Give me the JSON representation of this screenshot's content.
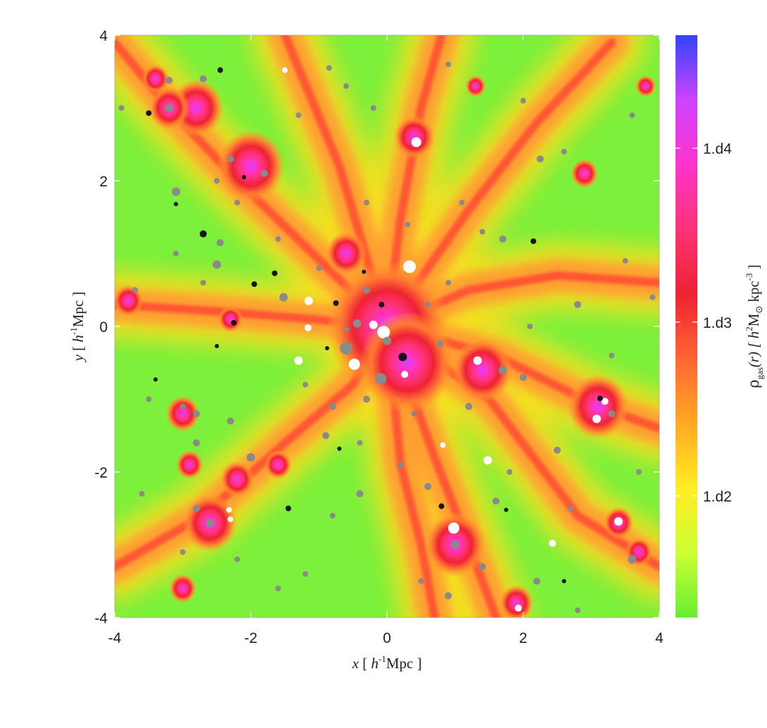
{
  "chart_data": {
    "type": "heatmap",
    "title": "",
    "xlabel_var": "x",
    "xlabel_unit_open": " [ ",
    "xlabel_h": "h",
    "xlabel_exp": "-1",
    "xlabel_unit_close": "Mpc ]",
    "ylabel_var": "y",
    "ylabel_unit_open": " [ ",
    "ylabel_h": "h",
    "ylabel_exp": "-1",
    "ylabel_unit_close": "Mpc ]",
    "xlim": [
      -4,
      4
    ],
    "ylim": [
      -4,
      4
    ],
    "x_ticks": [
      -4,
      -2,
      0,
      2,
      4
    ],
    "y_ticks": [
      -4,
      -2,
      0,
      2,
      4
    ],
    "x_tick_labels": [
      "-4",
      "-2",
      "0",
      "2",
      "4"
    ],
    "y_tick_labels": [
      "-4",
      "-2",
      "0",
      "2",
      "4"
    ],
    "colorbar": {
      "label_rho": "ρ",
      "label_sub": "gas",
      "label_arg": "(r) [ ",
      "label_h": "h",
      "label_h_exp": "2",
      "label_msun": "M",
      "label_sun": "⊙",
      "label_kpc": " kpc",
      "label_kpc_exp": "-3",
      "label_close": " ]",
      "tick_labels": [
        "1.d2",
        "1.d3",
        "1.d4"
      ],
      "tick_values_log10": [
        2,
        3,
        4
      ],
      "range_log10": [
        1.3,
        4.65
      ],
      "colors": [
        "#66ee33",
        "#ccff33",
        "#ffee22",
        "#ffaa22",
        "#ff6633",
        "#ee2233",
        "#ff3377",
        "#ff33cc",
        "#cc44ff",
        "#3344ff"
      ]
    },
    "background_color": "#7cf03c",
    "filaments": [
      {
        "x": [
          0,
          -1.2,
          -2.3,
          -3.2,
          -4.0
        ],
        "y": [
          0,
          1.1,
          2.1,
          3.0,
          3.9
        ]
      },
      {
        "x": [
          0,
          0.2,
          0.5,
          0.8
        ],
        "y": [
          0,
          1.5,
          3.0,
          4.0
        ]
      },
      {
        "x": [
          0,
          -0.7,
          -1.5
        ],
        "y": [
          0,
          2.2,
          4.0
        ]
      },
      {
        "x": [
          0,
          1.2,
          2.2,
          3.3
        ],
        "y": [
          0,
          1.6,
          2.8,
          3.9
        ]
      },
      {
        "x": [
          0,
          1.6,
          3.1,
          4.0
        ],
        "y": [
          0,
          -0.4,
          -1.1,
          -1.4
        ]
      },
      {
        "x": [
          0,
          0.7,
          1.2,
          1.6
        ],
        "y": [
          0,
          -1.8,
          -3.0,
          -4.0
        ]
      },
      {
        "x": [
          0,
          0.2,
          0.5,
          0.7
        ],
        "y": [
          0,
          -1.9,
          -3.0,
          -4.0
        ]
      },
      {
        "x": [
          0,
          -0.5,
          -1.5,
          -2.7,
          -4.0
        ],
        "y": [
          0,
          -0.8,
          -1.6,
          -2.6,
          -3.3
        ]
      },
      {
        "x": [
          0,
          -1.1,
          -2.4,
          -4.0
        ],
        "y": [
          0,
          0.1,
          0.2,
          0.3
        ]
      },
      {
        "x": [
          0,
          1.2,
          2.5,
          4.0
        ],
        "y": [
          0,
          0.5,
          0.7,
          0.6
        ]
      },
      {
        "x": [
          0,
          1.5,
          2.8,
          4.0
        ],
        "y": [
          0,
          -1.0,
          -2.6,
          -3.3
        ]
      }
    ],
    "halos": [
      {
        "x": 0.0,
        "y": 0.0,
        "r": 0.9
      },
      {
        "x": 0.3,
        "y": -0.5,
        "r": 0.7
      },
      {
        "x": 1.4,
        "y": -0.6,
        "r": 0.45
      },
      {
        "x": 3.1,
        "y": -1.1,
        "r": 0.45
      },
      {
        "x": 1.0,
        "y": -3.0,
        "r": 0.45
      },
      {
        "x": -2.8,
        "y": 3.0,
        "r": 0.4
      },
      {
        "x": -2.0,
        "y": 2.2,
        "r": 0.5
      },
      {
        "x": -3.2,
        "y": 3.0,
        "r": 0.3
      },
      {
        "x": -2.6,
        "y": -2.7,
        "r": 0.4
      },
      {
        "x": -3.0,
        "y": -1.2,
        "r": 0.25
      },
      {
        "x": -2.9,
        "y": -1.9,
        "r": 0.2
      },
      {
        "x": -3.0,
        "y": -3.6,
        "r": 0.2
      },
      {
        "x": 0.4,
        "y": 2.6,
        "r": 0.3
      },
      {
        "x": -3.8,
        "y": 0.35,
        "r": 0.22
      },
      {
        "x": 3.4,
        "y": -2.7,
        "r": 0.22
      },
      {
        "x": 3.7,
        "y": -3.1,
        "r": 0.2
      },
      {
        "x": 1.9,
        "y": -3.8,
        "r": 0.25
      },
      {
        "x": 2.9,
        "y": 2.1,
        "r": 0.2
      },
      {
        "x": -1.6,
        "y": -1.9,
        "r": 0.2
      },
      {
        "x": -2.2,
        "y": -2.1,
        "r": 0.25
      },
      {
        "x": -2.3,
        "y": 0.1,
        "r": 0.18
      },
      {
        "x": 1.3,
        "y": 3.3,
        "r": 0.15
      },
      {
        "x": -0.6,
        "y": 1.0,
        "r": 0.3
      },
      {
        "x": -3.4,
        "y": 3.4,
        "r": 0.2
      },
      {
        "x": 3.8,
        "y": 3.3,
        "r": 0.15
      }
    ],
    "subhalos": [
      {
        "x": 0.33,
        "y": 0.82,
        "s": 9,
        "c": "white"
      },
      {
        "x": -0.05,
        "y": -0.08,
        "s": 9,
        "c": "white"
      },
      {
        "x": -0.48,
        "y": -0.52,
        "s": 8,
        "c": "white"
      },
      {
        "x": 0.43,
        "y": 2.53,
        "s": 7,
        "c": "white"
      },
      {
        "x": 0.98,
        "y": -2.77,
        "s": 8,
        "c": "white"
      },
      {
        "x": 3.08,
        "y": -1.27,
        "s": 6,
        "c": "white"
      },
      {
        "x": 3.2,
        "y": -1.03,
        "s": 5,
        "c": "white"
      },
      {
        "x": 1.33,
        "y": -0.47,
        "s": 6,
        "c": "white"
      },
      {
        "x": 1.48,
        "y": -1.84,
        "s": 6,
        "c": "white"
      },
      {
        "x": 0.82,
        "y": -1.63,
        "s": 4,
        "c": "white"
      },
      {
        "x": 3.4,
        "y": -2.68,
        "s": 6,
        "c": "white"
      },
      {
        "x": 1.93,
        "y": -3.87,
        "s": 5,
        "c": "white"
      },
      {
        "x": 2.43,
        "y": -2.98,
        "s": 5,
        "c": "white"
      },
      {
        "x": -1.15,
        "y": 0.35,
        "s": 6,
        "c": "white"
      },
      {
        "x": -1.16,
        "y": -0.02,
        "s": 5,
        "c": "white"
      },
      {
        "x": -1.3,
        "y": -0.47,
        "s": 6,
        "c": "white"
      },
      {
        "x": -0.2,
        "y": 0.02,
        "s": 6,
        "c": "white"
      },
      {
        "x": 0.26,
        "y": -0.66,
        "s": 5,
        "c": "white"
      },
      {
        "x": -1.5,
        "y": 3.52,
        "s": 4,
        "c": "white"
      },
      {
        "x": -2.3,
        "y": -2.65,
        "s": 4,
        "c": "white"
      },
      {
        "x": -2.32,
        "y": -2.52,
        "s": 4,
        "c": "white"
      },
      {
        "x": -0.6,
        "y": -0.3,
        "s": 9,
        "c": "grey"
      },
      {
        "x": 0.0,
        "y": -0.2,
        "s": 6,
        "c": "grey"
      },
      {
        "x": -0.09,
        "y": -0.72,
        "s": 8,
        "c": "grey"
      },
      {
        "x": -1.52,
        "y": 0.4,
        "s": 6,
        "c": "grey"
      },
      {
        "x": -0.44,
        "y": 0.04,
        "s": 6,
        "c": "grey"
      },
      {
        "x": -0.3,
        "y": 0.5,
        "s": 5,
        "c": "grey"
      },
      {
        "x": 0.78,
        "y": -0.24,
        "s": 5,
        "c": "grey"
      },
      {
        "x": 1.7,
        "y": -0.6,
        "s": 6,
        "c": "grey"
      },
      {
        "x": 1.0,
        "y": -3.0,
        "s": 6,
        "c": "grey"
      },
      {
        "x": 0.6,
        "y": -2.2,
        "s": 5,
        "c": "grey"
      },
      {
        "x": 3.3,
        "y": -1.2,
        "s": 5,
        "c": "grey"
      },
      {
        "x": 2.5,
        "y": -1.7,
        "s": 5,
        "c": "grey"
      },
      {
        "x": 2.25,
        "y": 2.3,
        "s": 5,
        "c": "grey"
      },
      {
        "x": -3.2,
        "y": 3.0,
        "s": 6,
        "c": "grey"
      },
      {
        "x": -2.7,
        "y": 3.4,
        "s": 5,
        "c": "grey"
      },
      {
        "x": -3.2,
        "y": 3.38,
        "s": 5,
        "c": "grey"
      },
      {
        "x": -2.3,
        "y": 2.3,
        "s": 5,
        "c": "grey"
      },
      {
        "x": -1.8,
        "y": 2.1,
        "s": 5,
        "c": "grey"
      },
      {
        "x": -2.5,
        "y": 2.0,
        "s": 4,
        "c": "grey"
      },
      {
        "x": -3.1,
        "y": 1.85,
        "s": 6,
        "c": "grey"
      },
      {
        "x": -2.5,
        "y": 0.85,
        "s": 6,
        "c": "grey"
      },
      {
        "x": -2.45,
        "y": 1.15,
        "s": 5,
        "c": "grey"
      },
      {
        "x": -2.7,
        "y": 0.6,
        "s": 4,
        "c": "grey"
      },
      {
        "x": -2.8,
        "y": -1.2,
        "s": 5,
        "c": "grey"
      },
      {
        "x": -3.0,
        "y": -1.1,
        "s": 4,
        "c": "grey"
      },
      {
        "x": -2.8,
        "y": -1.6,
        "s": 5,
        "c": "grey"
      },
      {
        "x": -2.6,
        "y": -2.7,
        "s": 6,
        "c": "grey"
      },
      {
        "x": -2.8,
        "y": -2.5,
        "s": 5,
        "c": "grey"
      },
      {
        "x": -3.0,
        "y": -3.1,
        "s": 4,
        "c": "grey"
      },
      {
        "x": -2.0,
        "y": -1.8,
        "s": 6,
        "c": "grey"
      },
      {
        "x": -2.3,
        "y": -1.3,
        "s": 5,
        "c": "grey"
      },
      {
        "x": 1.1,
        "y": 1.7,
        "s": 4,
        "c": "grey"
      },
      {
        "x": 1.4,
        "y": 1.3,
        "s": 4,
        "c": "grey"
      },
      {
        "x": 1.7,
        "y": 1.2,
        "s": 5,
        "c": "grey"
      },
      {
        "x": 0.3,
        "y": 1.4,
        "s": 4,
        "c": "grey"
      },
      {
        "x": -0.3,
        "y": 1.7,
        "s": 4,
        "c": "grey"
      },
      {
        "x": -0.2,
        "y": 3.0,
        "s": 4,
        "c": "grey"
      },
      {
        "x": -0.6,
        "y": 3.3,
        "s": 4,
        "c": "grey"
      },
      {
        "x": 0.9,
        "y": 3.6,
        "s": 4,
        "c": "grey"
      },
      {
        "x": 2.0,
        "y": 3.1,
        "s": 4,
        "c": "grey"
      },
      {
        "x": 3.6,
        "y": 2.9,
        "s": 4,
        "c": "grey"
      },
      {
        "x": 3.5,
        "y": 0.9,
        "s": 4,
        "c": "grey"
      },
      {
        "x": 2.8,
        "y": 0.3,
        "s": 5,
        "c": "grey"
      },
      {
        "x": 3.9,
        "y": 0.4,
        "s": 4,
        "c": "grey"
      },
      {
        "x": 2.1,
        "y": 0.0,
        "s": 4,
        "c": "grey"
      },
      {
        "x": 2.0,
        "y": -0.7,
        "s": 5,
        "c": "grey"
      },
      {
        "x": 1.2,
        "y": -1.1,
        "s": 5,
        "c": "grey"
      },
      {
        "x": 0.4,
        "y": -1.2,
        "s": 4,
        "c": "grey"
      },
      {
        "x": -0.3,
        "y": -1.0,
        "s": 5,
        "c": "grey"
      },
      {
        "x": -0.8,
        "y": -1.1,
        "s": 5,
        "c": "grey"
      },
      {
        "x": -0.9,
        "y": -1.5,
        "s": 5,
        "c": "grey"
      },
      {
        "x": -0.4,
        "y": -1.6,
        "s": 4,
        "c": "grey"
      },
      {
        "x": 0.2,
        "y": -1.9,
        "s": 4,
        "c": "grey"
      },
      {
        "x": 1.6,
        "y": -2.4,
        "s": 5,
        "c": "grey"
      },
      {
        "x": 1.8,
        "y": -2.0,
        "s": 4,
        "c": "grey"
      },
      {
        "x": 1.4,
        "y": -3.3,
        "s": 5,
        "c": "grey"
      },
      {
        "x": 0.5,
        "y": -3.5,
        "s": 4,
        "c": "grey"
      },
      {
        "x": 0.9,
        "y": -3.7,
        "s": 5,
        "c": "grey"
      },
      {
        "x": 2.2,
        "y": -3.5,
        "s": 5,
        "c": "grey"
      },
      {
        "x": 2.8,
        "y": -3.9,
        "s": 4,
        "c": "grey"
      },
      {
        "x": 3.6,
        "y": -3.2,
        "s": 6,
        "c": "grey"
      },
      {
        "x": 3.7,
        "y": -2.0,
        "s": 4,
        "c": "grey"
      },
      {
        "x": -0.4,
        "y": -2.3,
        "s": 5,
        "c": "grey"
      },
      {
        "x": -0.8,
        "y": -2.6,
        "s": 4,
        "c": "grey"
      },
      {
        "x": -1.2,
        "y": -3.4,
        "s": 4,
        "c": "grey"
      },
      {
        "x": -1.6,
        "y": -3.6,
        "s": 4,
        "c": "grey"
      },
      {
        "x": -2.2,
        "y": -3.2,
        "s": 4,
        "c": "grey"
      },
      {
        "x": -3.6,
        "y": -2.3,
        "s": 4,
        "c": "grey"
      },
      {
        "x": -3.5,
        "y": -1.0,
        "s": 4,
        "c": "grey"
      },
      {
        "x": -3.7,
        "y": 0.5,
        "s": 4,
        "c": "grey"
      },
      {
        "x": -3.1,
        "y": 1.0,
        "s": 4,
        "c": "grey"
      },
      {
        "x": -2.2,
        "y": 1.7,
        "s": 4,
        "c": "grey"
      },
      {
        "x": -1.6,
        "y": 1.2,
        "s": 4,
        "c": "grey"
      },
      {
        "x": -1.0,
        "y": 0.8,
        "s": 4,
        "c": "grey"
      },
      {
        "x": 0.6,
        "y": 0.3,
        "s": 4,
        "c": "grey"
      },
      {
        "x": 0.9,
        "y": 0.6,
        "s": 4,
        "c": "grey"
      },
      {
        "x": -3.9,
        "y": 3.0,
        "s": 4,
        "c": "grey"
      },
      {
        "x": -1.3,
        "y": 2.9,
        "s": 4,
        "c": "grey"
      },
      {
        "x": -0.85,
        "y": 3.55,
        "s": 4,
        "c": "grey"
      },
      {
        "x": 2.6,
        "y": 2.4,
        "s": 4,
        "c": "grey"
      },
      {
        "x": 3.3,
        "y": -0.4,
        "s": 4,
        "c": "grey"
      },
      {
        "x": 2.7,
        "y": -2.5,
        "s": 4,
        "c": "grey"
      },
      {
        "x": -0.6,
        "y": -0.04,
        "s": 4,
        "c": "grey"
      },
      {
        "x": -1.2,
        "y": -0.8,
        "s": 4,
        "c": "grey"
      },
      {
        "x": -2.45,
        "y": 3.52,
        "s": 4,
        "c": "black"
      },
      {
        "x": -3.5,
        "y": 2.93,
        "s": 4,
        "c": "black"
      },
      {
        "x": -2.7,
        "y": 1.27,
        "s": 5,
        "c": "black"
      },
      {
        "x": -2.1,
        "y": 2.05,
        "s": 3,
        "c": "black"
      },
      {
        "x": -3.1,
        "y": 1.68,
        "s": 3,
        "c": "black"
      },
      {
        "x": -1.65,
        "y": 0.73,
        "s": 4,
        "c": "black"
      },
      {
        "x": -1.95,
        "y": 0.58,
        "s": 4,
        "c": "black"
      },
      {
        "x": -2.25,
        "y": 0.05,
        "s": 4,
        "c": "black"
      },
      {
        "x": -2.5,
        "y": -0.27,
        "s": 3,
        "c": "black"
      },
      {
        "x": -3.4,
        "y": -0.73,
        "s": 3,
        "c": "black"
      },
      {
        "x": -1.45,
        "y": -2.5,
        "s": 4,
        "c": "black"
      },
      {
        "x": 0.23,
        "y": -0.42,
        "s": 6,
        "c": "black"
      },
      {
        "x": -0.08,
        "y": 0.3,
        "s": 4,
        "c": "black"
      },
      {
        "x": -0.75,
        "y": 0.32,
        "s": 4,
        "c": "black"
      },
      {
        "x": -0.34,
        "y": 0.75,
        "s": 3,
        "c": "black"
      },
      {
        "x": -0.88,
        "y": -0.3,
        "s": 3,
        "c": "black"
      },
      {
        "x": 2.15,
        "y": 1.17,
        "s": 4,
        "c": "black"
      },
      {
        "x": 3.13,
        "y": -0.99,
        "s": 4,
        "c": "black"
      },
      {
        "x": 0.8,
        "y": -2.47,
        "s": 4,
        "c": "black"
      },
      {
        "x": 1.75,
        "y": -2.52,
        "s": 3,
        "c": "black"
      },
      {
        "x": 2.6,
        "y": -3.5,
        "s": 3,
        "c": "black"
      },
      {
        "x": -0.7,
        "y": -1.68,
        "s": 3,
        "c": "black"
      }
    ]
  }
}
